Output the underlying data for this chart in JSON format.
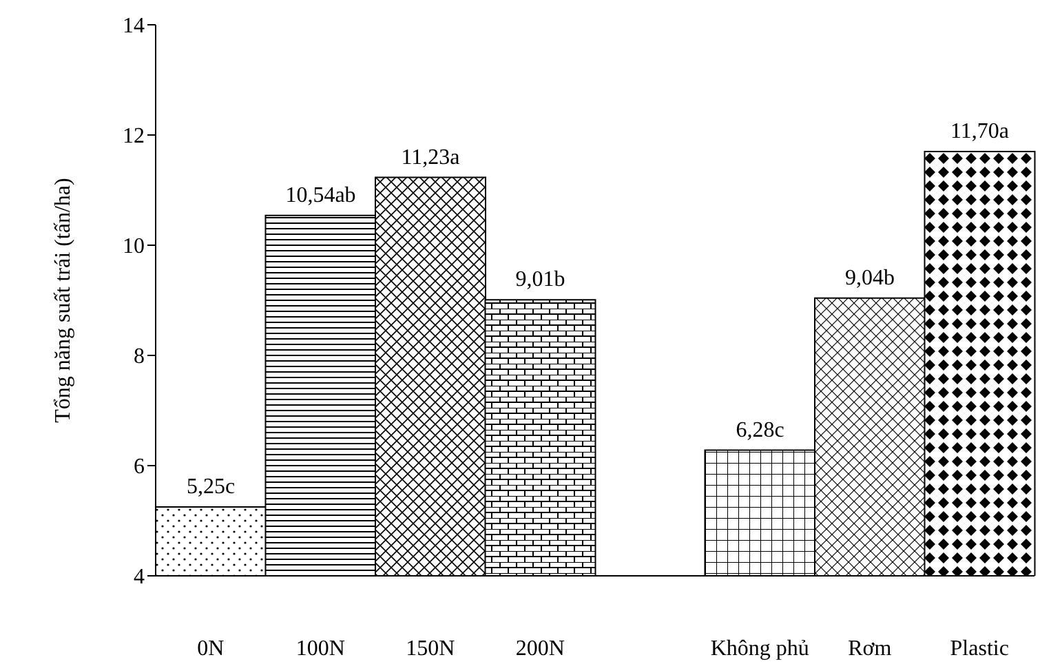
{
  "chart_data": {
    "type": "bar",
    "ylabel": "Tổng năng suất trái (tấn/ha)",
    "categories": [
      "0N",
      "100N",
      "150N",
      "200N",
      null,
      "Không phủ",
      "Rơm",
      "Plastic"
    ],
    "values": [
      5.25,
      10.54,
      11.23,
      9.01,
      null,
      6.28,
      9.04,
      11.7
    ],
    "value_labels": [
      "5,25c",
      "10,54ab",
      "11,23a",
      "9,01b",
      null,
      "6,28c",
      "9,04b",
      "11,70a"
    ],
    "color": "#000000",
    "ylim": [
      4,
      14
    ],
    "yticks": [
      4,
      6,
      8,
      10,
      12,
      14
    ]
  }
}
